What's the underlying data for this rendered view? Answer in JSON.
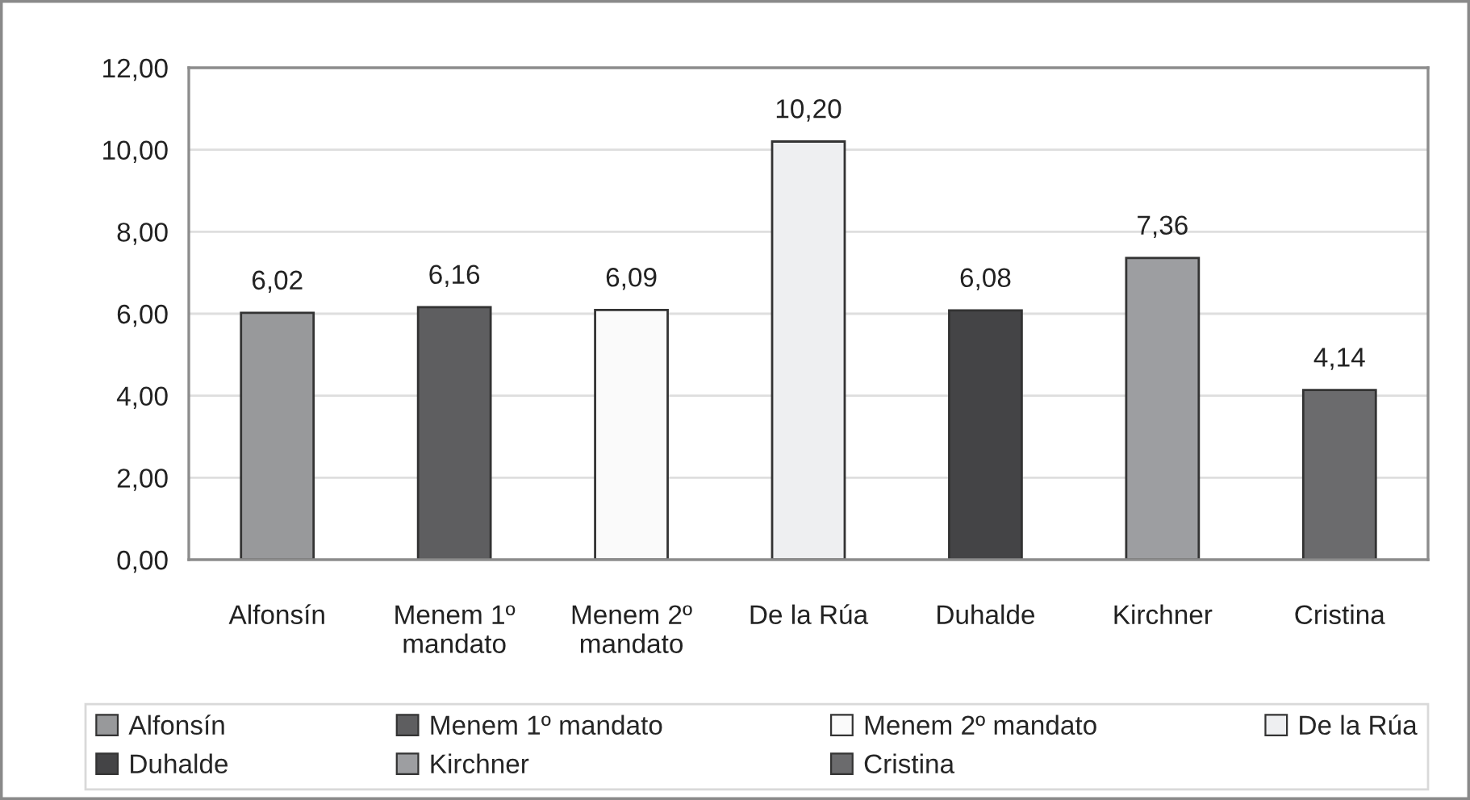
{
  "chart_data": {
    "type": "bar",
    "categories": [
      "Alfonsín",
      "Menem 1º mandato",
      "Menem 2º mandato",
      "De la Rúa",
      "Duhalde",
      "Kirchner",
      "Cristina"
    ],
    "series": [
      {
        "name": "Alfonsín",
        "color": "#98999b",
        "values": [
          6.02,
          null,
          null,
          null,
          null,
          null,
          null
        ],
        "value_labels": [
          "6,02",
          null,
          null,
          null,
          null,
          null,
          null
        ]
      },
      {
        "name": "Menem 1º mandato",
        "color": "#5e5e60",
        "values": [
          null,
          6.16,
          null,
          null,
          null,
          null,
          null
        ],
        "value_labels": [
          null,
          "6,16",
          null,
          null,
          null,
          null,
          null
        ]
      },
      {
        "name": "Menem 2º mandato",
        "color": "#fafafa",
        "values": [
          null,
          null,
          6.09,
          null,
          null,
          null,
          null
        ],
        "value_labels": [
          null,
          null,
          "6,09",
          null,
          null,
          null,
          null
        ]
      },
      {
        "name": "De la Rúa",
        "color": "#eeeff1",
        "values": [
          null,
          null,
          null,
          10.2,
          null,
          null,
          null
        ],
        "value_labels": [
          null,
          null,
          null,
          "10,20",
          null,
          null,
          null
        ]
      },
      {
        "name": "Duhalde",
        "color": "#444446",
        "values": [
          null,
          null,
          null,
          null,
          6.08,
          null,
          null
        ],
        "value_labels": [
          null,
          null,
          null,
          null,
          "6,08",
          null,
          null
        ]
      },
      {
        "name": "Kirchner",
        "color": "#9d9ea1",
        "values": [
          null,
          null,
          null,
          null,
          null,
          7.36,
          null
        ],
        "value_labels": [
          null,
          null,
          null,
          null,
          null,
          "7,36",
          null
        ]
      },
      {
        "name": "Cristina",
        "color": "#6b6b6d",
        "values": [
          null,
          null,
          null,
          null,
          null,
          null,
          4.14
        ],
        "value_labels": [
          null,
          null,
          null,
          null,
          null,
          null,
          "4,14"
        ]
      }
    ],
    "ylim": [
      0,
      12
    ],
    "yticks": [
      {
        "value": 0,
        "label": "0,00"
      },
      {
        "value": 2,
        "label": "2,00"
      },
      {
        "value": 4,
        "label": "4,00"
      },
      {
        "value": 6,
        "label": "6,00"
      },
      {
        "value": 8,
        "label": "8,00"
      },
      {
        "value": 10,
        "label": "10,00"
      },
      {
        "value": 12,
        "label": "12,00"
      }
    ],
    "grid": "y",
    "legend": "bottom"
  }
}
